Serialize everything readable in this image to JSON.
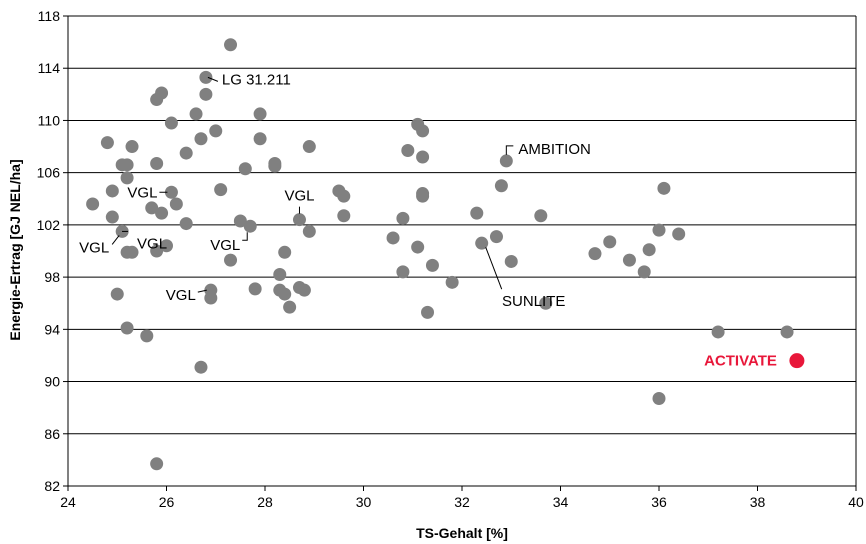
{
  "chart_data": {
    "type": "scatter",
    "xlabel": "TS-Gehalt [%]",
    "ylabel": "Energie-Ertrag [GJ NEL/ha]",
    "xlim": [
      24,
      40
    ],
    "ylim": [
      82,
      118
    ],
    "x_ticks": [
      "24",
      "26",
      "28",
      "30",
      "32",
      "34",
      "36",
      "38",
      "40"
    ],
    "y_ticks": [
      "82",
      "86",
      "90",
      "94",
      "98",
      "102",
      "106",
      "110",
      "114",
      "118"
    ],
    "grid": "horizontal",
    "legend": "none",
    "point_color": "#808080",
    "highlight_color": "#e8173a",
    "points": [
      {
        "x": 24.5,
        "y": 103.6
      },
      {
        "x": 24.8,
        "y": 108.3
      },
      {
        "x": 24.9,
        "y": 104.6
      },
      {
        "x": 24.9,
        "y": 102.6
      },
      {
        "x": 25.0,
        "y": 96.7
      },
      {
        "x": 25.1,
        "y": 101.5
      },
      {
        "x": 25.1,
        "y": 106.6
      },
      {
        "x": 25.2,
        "y": 105.6
      },
      {
        "x": 25.2,
        "y": 99.9
      },
      {
        "x": 25.2,
        "y": 94.1
      },
      {
        "x": 25.2,
        "y": 106.6
      },
      {
        "x": 25.3,
        "y": 108.0
      },
      {
        "x": 25.3,
        "y": 99.9
      },
      {
        "x": 25.6,
        "y": 93.5
      },
      {
        "x": 25.7,
        "y": 103.3
      },
      {
        "x": 25.8,
        "y": 111.6
      },
      {
        "x": 25.8,
        "y": 106.7
      },
      {
        "x": 25.8,
        "y": 83.7
      },
      {
        "x": 25.8,
        "y": 100.0
      },
      {
        "x": 25.9,
        "y": 112.1
      },
      {
        "x": 25.9,
        "y": 102.9
      },
      {
        "x": 26.0,
        "y": 100.4
      },
      {
        "x": 26.1,
        "y": 109.8
      },
      {
        "x": 26.1,
        "y": 104.5
      },
      {
        "x": 26.2,
        "y": 103.6
      },
      {
        "x": 26.4,
        "y": 102.1
      },
      {
        "x": 26.4,
        "y": 107.5
      },
      {
        "x": 26.6,
        "y": 110.5
      },
      {
        "x": 26.7,
        "y": 108.6
      },
      {
        "x": 26.7,
        "y": 91.1
      },
      {
        "x": 26.8,
        "y": 112.0
      },
      {
        "x": 26.8,
        "y": 113.3
      },
      {
        "x": 26.9,
        "y": 97.0
      },
      {
        "x": 26.9,
        "y": 96.4
      },
      {
        "x": 27.0,
        "y": 109.2
      },
      {
        "x": 27.1,
        "y": 104.7
      },
      {
        "x": 27.3,
        "y": 115.8
      },
      {
        "x": 27.3,
        "y": 99.3
      },
      {
        "x": 27.5,
        "y": 102.3
      },
      {
        "x": 27.6,
        "y": 106.3
      },
      {
        "x": 27.7,
        "y": 101.9
      },
      {
        "x": 27.8,
        "y": 97.1
      },
      {
        "x": 27.9,
        "y": 108.6
      },
      {
        "x": 27.9,
        "y": 110.5
      },
      {
        "x": 28.2,
        "y": 106.5
      },
      {
        "x": 28.2,
        "y": 106.7
      },
      {
        "x": 28.3,
        "y": 98.2
      },
      {
        "x": 28.3,
        "y": 97.0
      },
      {
        "x": 28.4,
        "y": 96.7
      },
      {
        "x": 28.4,
        "y": 99.9
      },
      {
        "x": 28.5,
        "y": 95.7
      },
      {
        "x": 28.7,
        "y": 97.2
      },
      {
        "x": 28.7,
        "y": 102.4
      },
      {
        "x": 28.8,
        "y": 97.0
      },
      {
        "x": 28.9,
        "y": 108.0
      },
      {
        "x": 28.9,
        "y": 101.5
      },
      {
        "x": 29.5,
        "y": 104.6
      },
      {
        "x": 29.6,
        "y": 104.2
      },
      {
        "x": 29.6,
        "y": 102.7
      },
      {
        "x": 30.6,
        "y": 101.0
      },
      {
        "x": 30.8,
        "y": 102.5
      },
      {
        "x": 30.8,
        "y": 98.4
      },
      {
        "x": 30.9,
        "y": 107.7
      },
      {
        "x": 31.1,
        "y": 100.3
      },
      {
        "x": 31.1,
        "y": 109.7
      },
      {
        "x": 31.2,
        "y": 109.2
      },
      {
        "x": 31.2,
        "y": 104.4
      },
      {
        "x": 31.2,
        "y": 104.2
      },
      {
        "x": 31.2,
        "y": 107.2
      },
      {
        "x": 31.3,
        "y": 95.3
      },
      {
        "x": 31.4,
        "y": 98.9
      },
      {
        "x": 31.8,
        "y": 97.6
      },
      {
        "x": 32.3,
        "y": 102.9
      },
      {
        "x": 32.4,
        "y": 100.6
      },
      {
        "x": 32.7,
        "y": 101.1
      },
      {
        "x": 32.8,
        "y": 105.0
      },
      {
        "x": 32.9,
        "y": 106.9
      },
      {
        "x": 33.0,
        "y": 99.2
      },
      {
        "x": 33.6,
        "y": 102.7
      },
      {
        "x": 33.7,
        "y": 96.0
      },
      {
        "x": 34.7,
        "y": 99.8
      },
      {
        "x": 35.0,
        "y": 100.7
      },
      {
        "x": 35.4,
        "y": 99.3
      },
      {
        "x": 35.7,
        "y": 98.4
      },
      {
        "x": 35.8,
        "y": 100.1
      },
      {
        "x": 36.0,
        "y": 101.6
      },
      {
        "x": 36.0,
        "y": 88.7
      },
      {
        "x": 36.1,
        "y": 104.8
      },
      {
        "x": 36.4,
        "y": 101.3
      },
      {
        "x": 37.2,
        "y": 93.8
      },
      {
        "x": 38.6,
        "y": 93.8
      }
    ],
    "highlight_point": {
      "x": 38.8,
      "y": 91.6,
      "label": "ACTIVATE"
    },
    "annotations": [
      {
        "label": "LG 31.211",
        "x": 26.8,
        "y": 113.3
      },
      {
        "label": "AMBITION",
        "x": 32.9,
        "y": 106.9
      },
      {
        "label": "SUNLITE",
        "x": 32.4,
        "y": 100.6
      },
      {
        "label": "VGL",
        "x": 26.1,
        "y": 104.5
      },
      {
        "label": "VGL",
        "x": 25.1,
        "y": 101.5
      },
      {
        "label": "VGL",
        "x": 25.3,
        "y": 101.5
      },
      {
        "label": "VGL",
        "x": 27.7,
        "y": 101.9
      },
      {
        "label": "VGL",
        "x": 28.7,
        "y": 102.4
      },
      {
        "label": "VGL",
        "x": 26.9,
        "y": 97.0
      }
    ]
  }
}
